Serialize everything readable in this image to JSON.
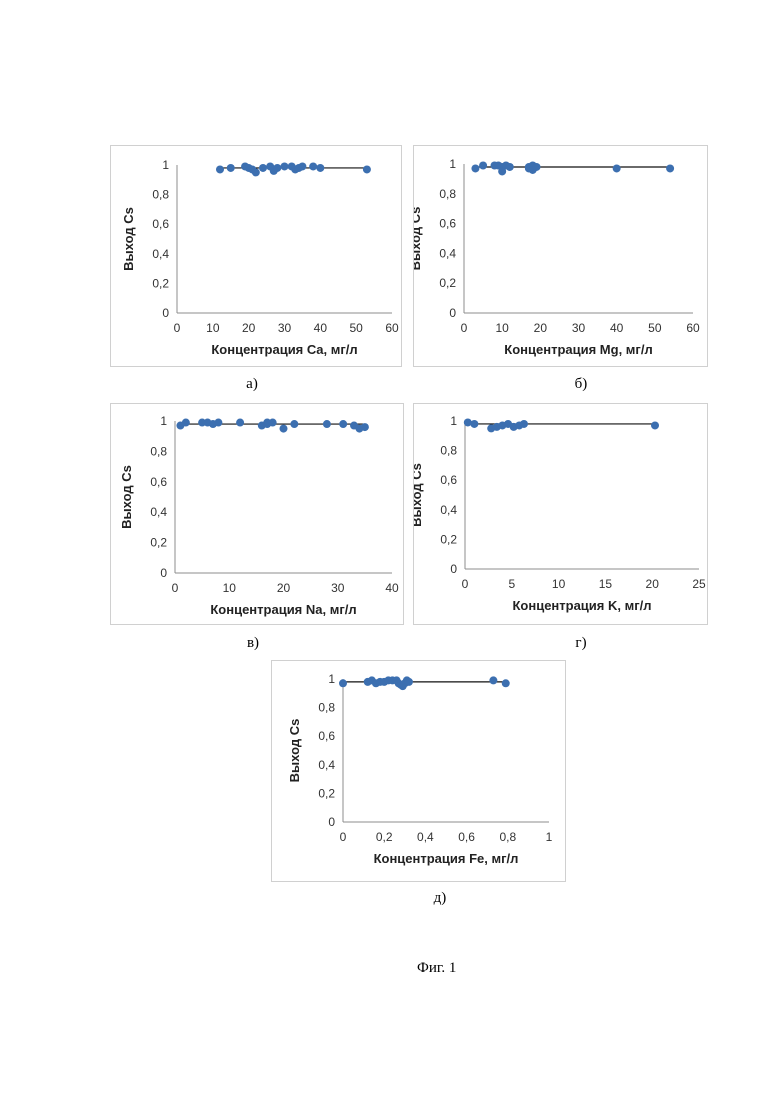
{
  "figure_caption": "Фиг. 1",
  "chart_data": [
    {
      "type": "scatter",
      "sublabel": "а)",
      "xlabel": "Концентрация Ca, мг/л",
      "ylabel": "Выход Cs",
      "xlim": [
        0,
        60
      ],
      "ylim": [
        0,
        1
      ],
      "xticks": [
        "0",
        "10",
        "20",
        "30",
        "40",
        "50",
        "60"
      ],
      "yticks": [
        "0",
        "0,2",
        "0,4",
        "0,6",
        "0,8",
        "1"
      ],
      "trendline": {
        "x": [
          12,
          53
        ],
        "y": [
          0.98,
          0.98
        ]
      },
      "points": [
        [
          12,
          0.97
        ],
        [
          15,
          0.98
        ],
        [
          19,
          0.99
        ],
        [
          20,
          0.98
        ],
        [
          21,
          0.97
        ],
        [
          22,
          0.95
        ],
        [
          24,
          0.98
        ],
        [
          26,
          0.99
        ],
        [
          27,
          0.96
        ],
        [
          28,
          0.98
        ],
        [
          30,
          0.99
        ],
        [
          32,
          0.99
        ],
        [
          33,
          0.97
        ],
        [
          34,
          0.98
        ],
        [
          35,
          0.99
        ],
        [
          38,
          0.99
        ],
        [
          40,
          0.98
        ],
        [
          53,
          0.97
        ]
      ]
    },
    {
      "type": "scatter",
      "sublabel": "б)",
      "xlabel": "Концентрация Mg, мг/л",
      "ylabel": "Выход Cs",
      "xlim": [
        0,
        60
      ],
      "ylim": [
        0,
        1
      ],
      "xticks": [
        "0",
        "10",
        "20",
        "30",
        "40",
        "50",
        "60"
      ],
      "yticks": [
        "0",
        "0,2",
        "0,4",
        "0,6",
        "0,8",
        "1"
      ],
      "trendline": {
        "x": [
          3,
          54
        ],
        "y": [
          0.98,
          0.98
        ]
      },
      "points": [
        [
          3,
          0.97
        ],
        [
          5,
          0.99
        ],
        [
          8,
          0.99
        ],
        [
          9,
          0.99
        ],
        [
          10,
          0.98
        ],
        [
          10,
          0.95
        ],
        [
          11,
          0.99
        ],
        [
          12,
          0.98
        ],
        [
          17,
          0.97
        ],
        [
          17,
          0.98
        ],
        [
          18,
          0.99
        ],
        [
          18,
          0.96
        ],
        [
          19,
          0.98
        ],
        [
          40,
          0.97
        ],
        [
          54,
          0.97
        ]
      ]
    },
    {
      "type": "scatter",
      "sublabel": "в)",
      "xlabel": "Концентрация Na, мг/л",
      "ylabel": "Выход Cs",
      "xlim": [
        0,
        40
      ],
      "ylim": [
        0,
        1
      ],
      "xticks": [
        "0",
        "10",
        "20",
        "30",
        "40"
      ],
      "yticks": [
        "0",
        "0,2",
        "0,4",
        "0,6",
        "0,8",
        "1"
      ],
      "trendline": {
        "x": [
          1,
          35
        ],
        "y": [
          0.98,
          0.98
        ]
      },
      "points": [
        [
          1,
          0.97
        ],
        [
          2,
          0.99
        ],
        [
          5,
          0.99
        ],
        [
          6,
          0.99
        ],
        [
          7,
          0.98
        ],
        [
          8,
          0.99
        ],
        [
          12,
          0.99
        ],
        [
          16,
          0.97
        ],
        [
          17,
          0.99
        ],
        [
          17,
          0.98
        ],
        [
          18,
          0.99
        ],
        [
          20,
          0.95
        ],
        [
          22,
          0.98
        ],
        [
          28,
          0.98
        ],
        [
          31,
          0.98
        ],
        [
          33,
          0.97
        ],
        [
          34,
          0.95
        ],
        [
          35,
          0.96
        ]
      ]
    },
    {
      "type": "scatter",
      "sublabel": "г)",
      "xlabel": "Концентрация K, мг/л",
      "ylabel": "Выход Cs",
      "xlim": [
        0,
        25
      ],
      "ylim": [
        0,
        1
      ],
      "xticks": [
        "0",
        "5",
        "10",
        "15",
        "20",
        "25"
      ],
      "yticks": [
        "0",
        "0,2",
        "0,4",
        "0,6",
        "0,8",
        "1"
      ],
      "trendline": {
        "x": [
          0.3,
          20.3
        ],
        "y": [
          0.98,
          0.98
        ]
      },
      "points": [
        [
          0.3,
          0.99
        ],
        [
          1,
          0.98
        ],
        [
          2.8,
          0.95
        ],
        [
          3.4,
          0.96
        ],
        [
          4,
          0.97
        ],
        [
          4.6,
          0.98
        ],
        [
          5.2,
          0.96
        ],
        [
          5.8,
          0.97
        ],
        [
          6.3,
          0.98
        ],
        [
          20.3,
          0.97
        ]
      ]
    },
    {
      "type": "scatter",
      "sublabel": "д)",
      "xlabel": "Концентрация Fe, мг/л",
      "ylabel": "Выход Cs",
      "xlim": [
        0,
        1
      ],
      "ylim": [
        0,
        1
      ],
      "xticks": [
        "0",
        "0,2",
        "0,4",
        "0,6",
        "0,8",
        "1"
      ],
      "yticks": [
        "0",
        "0,2",
        "0,4",
        "0,6",
        "0,8",
        "1"
      ],
      "trendline": {
        "x": [
          0,
          0.79
        ],
        "y": [
          0.98,
          0.98
        ]
      },
      "points": [
        [
          0,
          0.97
        ],
        [
          0.12,
          0.98
        ],
        [
          0.14,
          0.99
        ],
        [
          0.16,
          0.97
        ],
        [
          0.18,
          0.98
        ],
        [
          0.2,
          0.98
        ],
        [
          0.22,
          0.99
        ],
        [
          0.24,
          0.99
        ],
        [
          0.26,
          0.99
        ],
        [
          0.27,
          0.97
        ],
        [
          0.28,
          0.96
        ],
        [
          0.29,
          0.95
        ],
        [
          0.3,
          0.97
        ],
        [
          0.31,
          0.99
        ],
        [
          0.32,
          0.98
        ],
        [
          0.73,
          0.99
        ],
        [
          0.79,
          0.97
        ]
      ]
    }
  ],
  "colors": {
    "marker": "#3c6fb0",
    "line": "#111111",
    "axis": "#8c8c8c"
  }
}
